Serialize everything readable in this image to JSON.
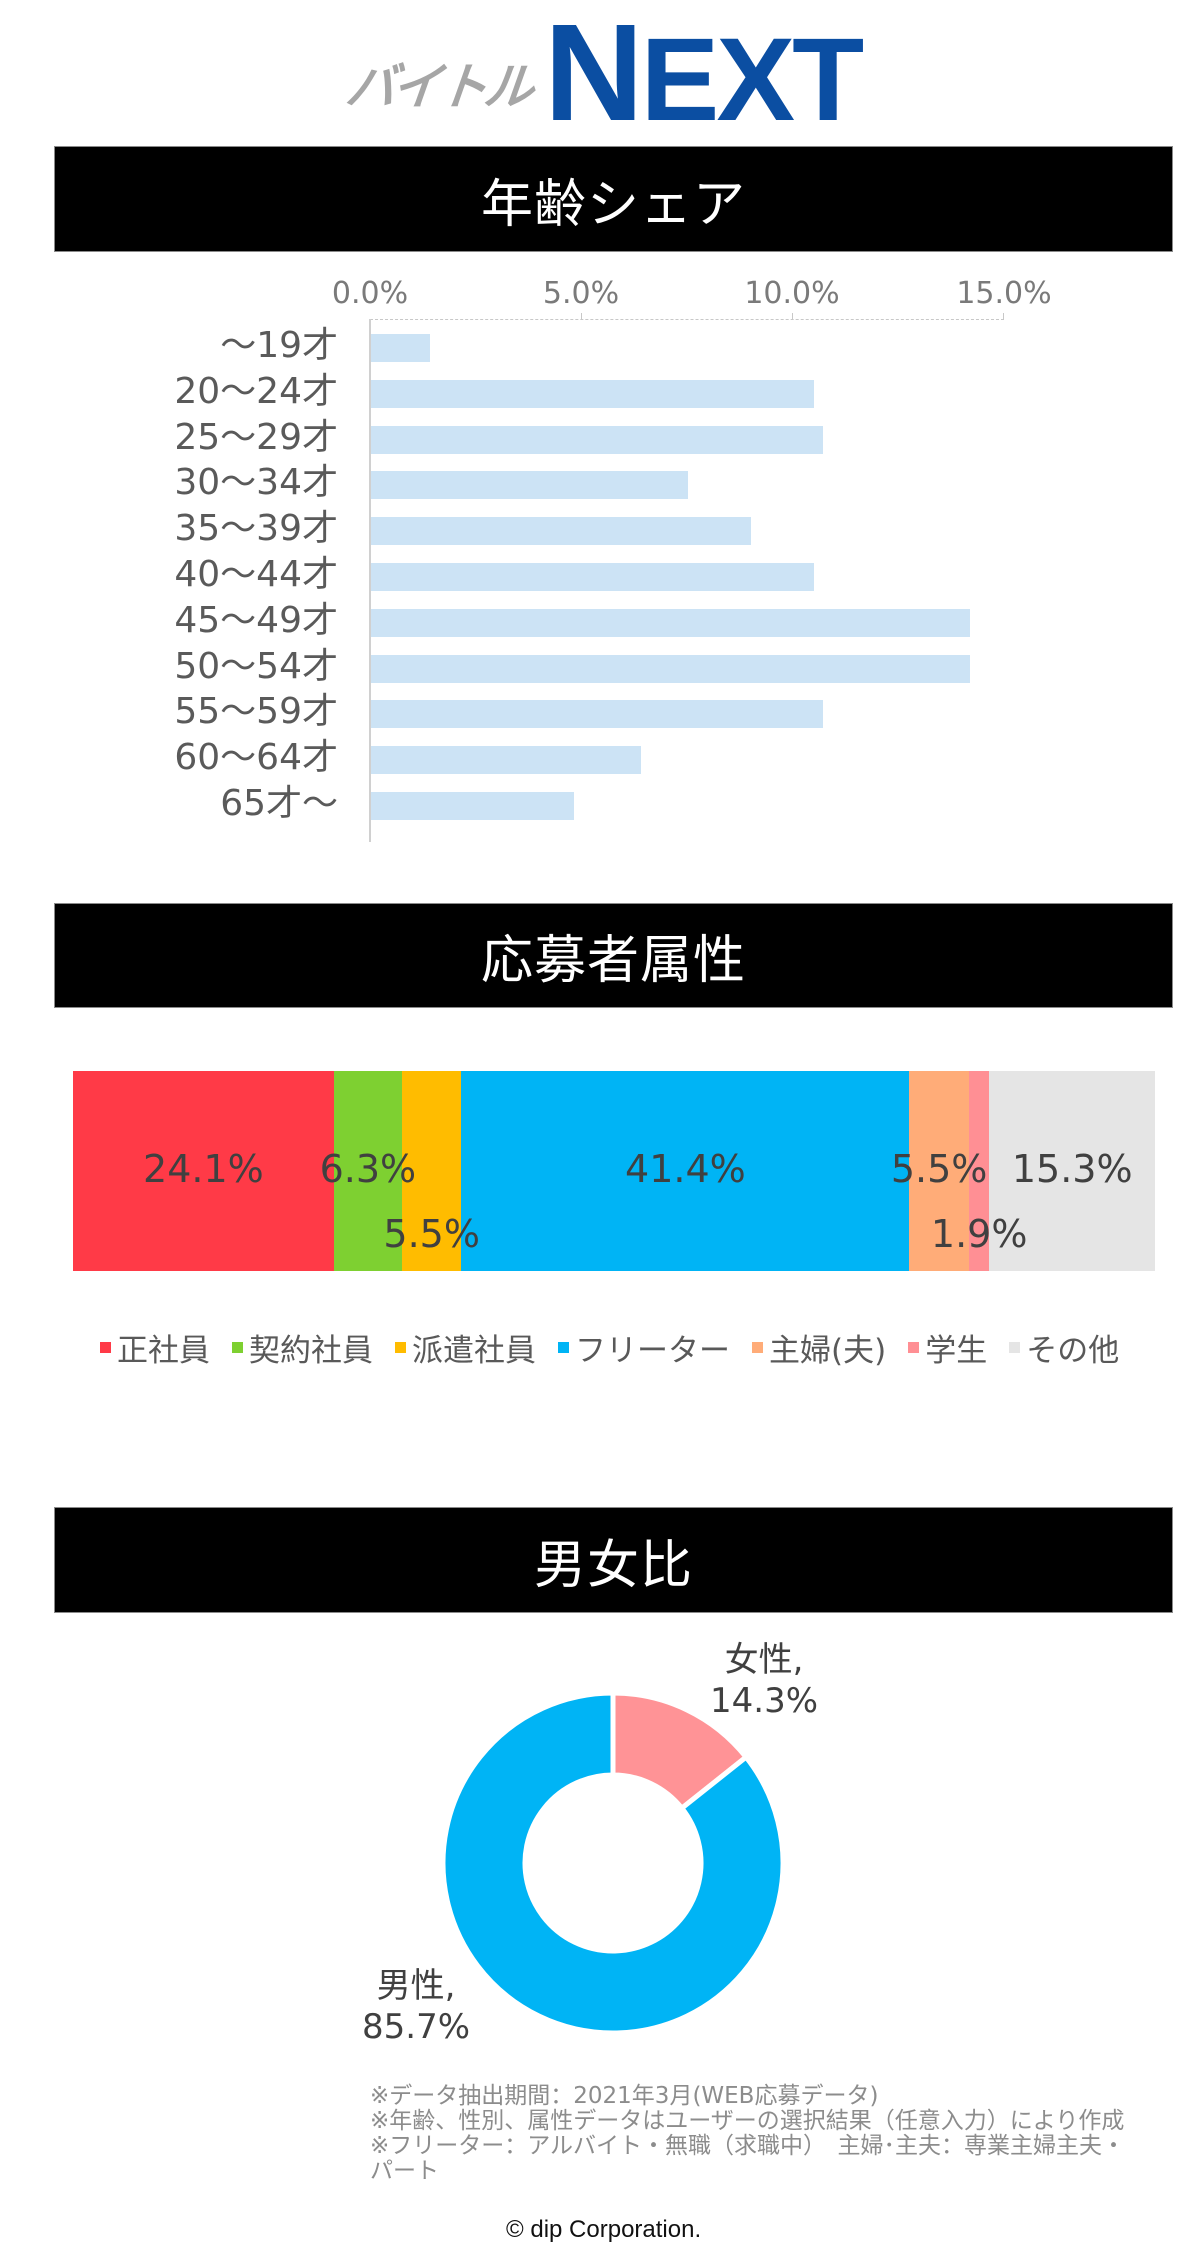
{
  "logo": {
    "prefix": "バイトル",
    "brand_first": "N",
    "brand_rest": "EXT",
    "brand_color": "#0b4ea2",
    "prefix_color": "#a6a6a6"
  },
  "sections": {
    "age": {
      "title": "年齢シェア"
    },
    "attributes": {
      "title": "応募者属性"
    },
    "gender": {
      "title": "男女比"
    }
  },
  "chart_data": [
    {
      "type": "bar",
      "orientation": "horizontal",
      "title": "年齢シェア",
      "categories": [
        "～19才",
        "20～24才",
        "25～29才",
        "30～34才",
        "35～39才",
        "40～44才",
        "45～49才",
        "50～54才",
        "55～59才",
        "60～64才",
        "65才～"
      ],
      "values": [
        1.4,
        10.5,
        10.7,
        7.5,
        9.0,
        10.5,
        14.2,
        14.2,
        10.7,
        6.4,
        4.8
      ],
      "xlim": [
        0,
        15
      ],
      "xticks": [
        "0.0%",
        "5.0%",
        "10.0%",
        "15.0%"
      ],
      "axis_position": "top",
      "bar_color": "#cce3f5",
      "xlabel": "",
      "ylabel": "",
      "grid": false
    },
    {
      "type": "bar",
      "stacked": true,
      "orientation": "horizontal",
      "title": "応募者属性",
      "series": [
        {
          "name": "正社員",
          "value": 24.1,
          "label": "24.1%",
          "color": "#ff3a47"
        },
        {
          "name": "契約社員",
          "value": 6.3,
          "label": "6.3%",
          "color": "#7ed031"
        },
        {
          "name": "派遣社員",
          "value": 5.5,
          "label": "5.5%",
          "color": "#ffbc00"
        },
        {
          "name": "フリーター",
          "value": 41.4,
          "label": "41.4%",
          "color": "#00b4f5"
        },
        {
          "name": "主婦(夫)",
          "value": 5.5,
          "label": "5.5%",
          "color": "#ffac78"
        },
        {
          "name": "学生",
          "value": 1.9,
          "label": "1.9%",
          "color": "#ff8f94"
        },
        {
          "name": "その他",
          "value": 15.3,
          "label": "15.3%",
          "color": "#e5e5e5"
        }
      ],
      "legend_position": "bottom"
    },
    {
      "type": "pie",
      "donut": true,
      "title": "男女比",
      "categories": [
        "女性",
        "男性"
      ],
      "values": [
        14.3,
        85.7
      ],
      "labels": [
        "女性,\n14.3%",
        "男性,\n85.7%"
      ],
      "colors": [
        "#ff9396",
        "#00b4f5"
      ]
    }
  ],
  "age_axis": {
    "ticks": [
      "0.0%",
      "5.0%",
      "10.0%",
      "15.0%"
    ]
  },
  "age_rows": [
    {
      "label": "～19才",
      "value": 1.4
    },
    {
      "label": "20～24才",
      "value": 10.5
    },
    {
      "label": "25～29才",
      "value": 10.7
    },
    {
      "label": "30～34才",
      "value": 7.5
    },
    {
      "label": "35～39才",
      "value": 9.0
    },
    {
      "label": "40～44才",
      "value": 10.5
    },
    {
      "label": "45～49才",
      "value": 14.2
    },
    {
      "label": "50～54才",
      "value": 14.2
    },
    {
      "label": "55～59才",
      "value": 10.7
    },
    {
      "label": "60～64才",
      "value": 6.4
    },
    {
      "label": "65才～",
      "value": 4.8
    }
  ],
  "gender": {
    "female": {
      "name": "女性,",
      "pct": "14.3%"
    },
    "male": {
      "name": "男性,",
      "pct": "85.7%"
    }
  },
  "notes": [
    "※データ抽出期間：2021年3月(WEB応募データ)",
    "※年齢、性別、属性データはユーザーの選択結果（任意入力）により作成",
    "※フリーター：アルバイト・無職（求職中）　主婦･主夫：専業主婦主夫・パート"
  ],
  "copyright": "© dip Corporation."
}
